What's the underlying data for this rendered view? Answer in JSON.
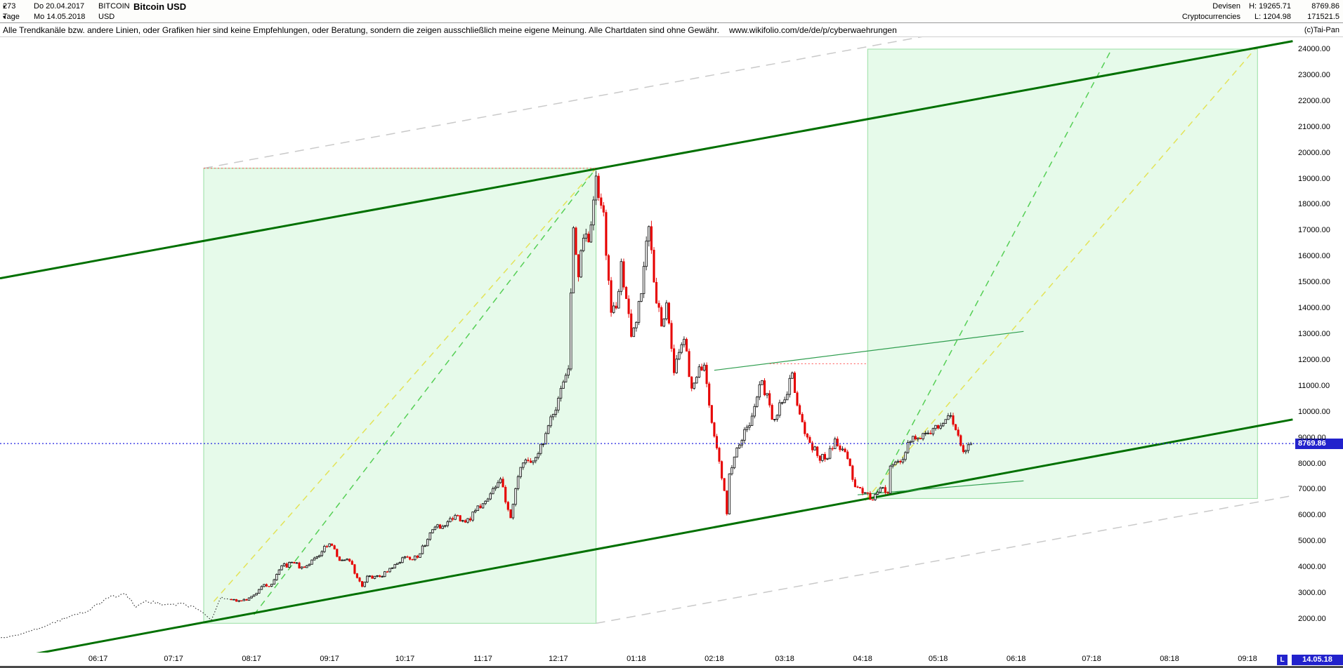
{
  "header": {
    "bars_count": "273",
    "range_start": "Do 20.04.2017",
    "period": "Tage",
    "range_end": "Mo 14.05.2018",
    "symbol": "BITCOIN",
    "symbol_currency": "USD",
    "title": "Bitcoin USD",
    "category_top": "Devisen",
    "category_bottom": "Cryptocurrencies",
    "high": "H: 19265.71",
    "low": "L: 1204.98",
    "last_price": "8769.86",
    "secondary_value": "171521.5"
  },
  "disclaimer": {
    "text": "Alle Trendkanäle bzw. andere Linien, oder Grafiken hier sind keine Empfehlungen, oder Beratung, sondern die zeigen ausschließlich meine eigene Meinung. Alle Chartdaten sind ohne Gewähr.",
    "url": "www.wikifolio.com/de/de/p/cyberwaehrungen",
    "copyright": "(c)Tai-Pan"
  },
  "icons": {
    "dropdown_caret": "▾"
  },
  "axis": {
    "y_ticks": [
      "24000.00",
      "23000.00",
      "22000.00",
      "21000.00",
      "20000.00",
      "19000.00",
      "18000.00",
      "17000.00",
      "16000.00",
      "15000.00",
      "14000.00",
      "13000.00",
      "12000.00",
      "11000.00",
      "10000.00",
      "9000.00",
      "8000.00",
      "7000.00",
      "6000.00",
      "5000.00",
      "4000.00",
      "3000.00",
      "2000.00"
    ],
    "x_ticks": [
      {
        "label": "06:17",
        "date": "2017-06-01"
      },
      {
        "label": "07:17",
        "date": "2017-07-01"
      },
      {
        "label": "08:17",
        "date": "2017-08-01"
      },
      {
        "label": "09:17",
        "date": "2017-09-01"
      },
      {
        "label": "10:17",
        "date": "2017-10-01"
      },
      {
        "label": "11:17",
        "date": "2017-11-01"
      },
      {
        "label": "12:17",
        "date": "2017-12-01"
      },
      {
        "label": "01:18",
        "date": "2018-01-01"
      },
      {
        "label": "02:18",
        "date": "2018-02-01"
      },
      {
        "label": "03:18",
        "date": "2018-03-01"
      },
      {
        "label": "04:18",
        "date": "2018-04-01"
      },
      {
        "label": "05:18",
        "date": "2018-05-01"
      },
      {
        "label": "06:18",
        "date": "2018-06-01"
      },
      {
        "label": "07:18",
        "date": "2018-07-01"
      },
      {
        "label": "08:18",
        "date": "2018-08-01"
      },
      {
        "label": "09:18",
        "date": "2018-09-01"
      }
    ],
    "last_marker": "L",
    "last_date": "14.05.18",
    "price_tag": "8769.86"
  },
  "colors": {
    "dark_green": "#007000",
    "light_green_fill": "#8fe6a0",
    "light_green_stroke": "#8fdc9a",
    "yellow": "#e3e357",
    "green_dashed": "#55cf55",
    "gray": "#c9c9c9",
    "thin_green": "#2f9e4f",
    "red": "#ff4d4d",
    "blue": "#2222e0",
    "candle_up_fill": "#ffffff",
    "candle_up_stroke": "#1a1a1a",
    "candle_down": "#e60000",
    "pre_line": "#2a2a2a",
    "price_tag_bg": "#2222cc"
  },
  "chart_data": {
    "type": "candlestick",
    "instrument": "Bitcoin USD",
    "interval": "Tage (daily)",
    "visible_high": 19265.71,
    "visible_low": 1204.98,
    "last": 8769.86,
    "x_axis": {
      "start": "2017-04-23",
      "end": "2018-09-20"
    },
    "y_axis": {
      "tick_min": 2000,
      "tick_max": 24000,
      "tick_step": 1000,
      "unit": "USD"
    },
    "candles_from": "2017-07-24",
    "close_anchors": [
      [
        "2017-04-20",
        1205
      ],
      [
        "2017-05-01",
        1400
      ],
      [
        "2017-05-12",
        1760
      ],
      [
        "2017-05-22",
        2150
      ],
      [
        "2017-05-27",
        2250
      ],
      [
        "2017-06-06",
        2880
      ],
      [
        "2017-06-12",
        2970
      ],
      [
        "2017-06-16",
        2450
      ],
      [
        "2017-06-20",
        2700
      ],
      [
        "2017-06-27",
        2550
      ],
      [
        "2017-07-05",
        2600
      ],
      [
        "2017-07-11",
        2350
      ],
      [
        "2017-07-16",
        1950
      ],
      [
        "2017-07-20",
        2850
      ],
      [
        "2017-07-24",
        2750
      ],
      [
        "2017-07-28",
        2700
      ],
      [
        "2017-08-01",
        2870
      ],
      [
        "2017-08-05",
        3250
      ],
      [
        "2017-08-09",
        3340
      ],
      [
        "2017-08-13",
        4050
      ],
      [
        "2017-08-18",
        4150
      ],
      [
        "2017-08-22",
        3980
      ],
      [
        "2017-08-26",
        4350
      ],
      [
        "2017-09-01",
        4900
      ],
      [
        "2017-09-05",
        4250
      ],
      [
        "2017-09-09",
        4230
      ],
      [
        "2017-09-14",
        3250
      ],
      [
        "2017-09-16",
        3650
      ],
      [
        "2017-09-21",
        3630
      ],
      [
        "2017-09-25",
        3950
      ],
      [
        "2017-10-01",
        4400
      ],
      [
        "2017-10-06",
        4370
      ],
      [
        "2017-10-12",
        5450
      ],
      [
        "2017-10-17",
        5600
      ],
      [
        "2017-10-21",
        6000
      ],
      [
        "2017-10-25",
        5730
      ],
      [
        "2017-11-01",
        6450
      ],
      [
        "2017-11-08",
        7400
      ],
      [
        "2017-11-12",
        5900
      ],
      [
        "2017-11-16",
        7850
      ],
      [
        "2017-11-21",
        8100
      ],
      [
        "2017-11-25",
        8750
      ],
      [
        "2017-11-29",
        9900
      ],
      [
        "2017-12-02",
        10900
      ],
      [
        "2017-12-05",
        11650
      ],
      [
        "2017-12-07",
        17100
      ],
      [
        "2017-12-09",
        15200
      ],
      [
        "2017-12-11",
        16700
      ],
      [
        "2017-12-13",
        16550
      ],
      [
        "2017-12-16",
        19100
      ],
      [
        "2017-12-19",
        17700
      ],
      [
        "2017-12-22",
        13830
      ],
      [
        "2017-12-24",
        14000
      ],
      [
        "2017-12-26",
        15800
      ],
      [
        "2017-12-30",
        12900
      ],
      [
        "2018-01-01",
        13450
      ],
      [
        "2018-01-06",
        17150
      ],
      [
        "2018-01-08",
        15000
      ],
      [
        "2018-01-11",
        13300
      ],
      [
        "2018-01-13",
        14200
      ],
      [
        "2018-01-16",
        11500
      ],
      [
        "2018-01-20",
        12800
      ],
      [
        "2018-01-23",
        10900
      ],
      [
        "2018-01-28",
        11800
      ],
      [
        "2018-02-01",
        9050
      ],
      [
        "2018-02-05",
        6950
      ],
      [
        "2018-02-06",
        6050
      ],
      [
        "2018-02-07",
        7600
      ],
      [
        "2018-02-10",
        8600
      ],
      [
        "2018-02-14",
        9400
      ],
      [
        "2018-02-17",
        10200
      ],
      [
        "2018-02-20",
        11200
      ],
      [
        "2018-02-24",
        9700
      ],
      [
        "2018-02-28",
        10350
      ],
      [
        "2018-03-04",
        11500
      ],
      [
        "2018-03-07",
        9900
      ],
      [
        "2018-03-11",
        8800
      ],
      [
        "2018-03-14",
        8300
      ],
      [
        "2018-03-18",
        8200
      ],
      [
        "2018-03-21",
        8950
      ],
      [
        "2018-03-25",
        8450
      ],
      [
        "2018-03-29",
        7100
      ],
      [
        "2018-04-01",
        6850
      ],
      [
        "2018-04-05",
        6600
      ],
      [
        "2018-04-08",
        7050
      ],
      [
        "2018-04-11",
        6850
      ],
      [
        "2018-04-12",
        7900
      ],
      [
        "2018-04-16",
        8050
      ],
      [
        "2018-04-20",
        8850
      ],
      [
        "2018-04-24",
        8950
      ],
      [
        "2018-04-29",
        9350
      ],
      [
        "2018-05-04",
        9700
      ],
      [
        "2018-05-06",
        9850
      ],
      [
        "2018-05-08",
        9300
      ],
      [
        "2018-05-11",
        8450
      ],
      [
        "2018-05-12",
        8500
      ],
      [
        "2018-05-14",
        8769.86
      ]
    ],
    "regions": [
      {
        "name": "trend-channel-2017",
        "from": "2017-07-13",
        "to": "2017-12-16",
        "top": 19400,
        "bottom": 1830,
        "fill": "light_green_fill",
        "stroke": "light_green_stroke",
        "opacity": 0.22
      },
      {
        "name": "trend-channel-2018",
        "from": "2018-04-03",
        "to": "2018-09-05",
        "top": 24000,
        "bottom": 6650,
        "fill": "light_green_fill",
        "stroke": "light_green_stroke",
        "opacity": 0.22
      }
    ],
    "trend_lines": [
      {
        "name": "gray-channel-upper",
        "from": [
          "2017-07-13",
          19400
        ],
        "to": [
          "2018-09-19",
          27100
        ],
        "color": "gray",
        "dash": "13,9",
        "width": 1.5
      },
      {
        "name": "gray-channel-lower",
        "from": [
          "2017-12-16",
          1830
        ],
        "to": [
          "2018-09-19",
          6760
        ],
        "color": "gray",
        "dash": "13,9",
        "width": 1.5
      },
      {
        "name": "yellow-fan-2017",
        "from": [
          "2017-07-17",
          2670
        ],
        "to": [
          "2017-12-16",
          19400
        ],
        "color": "yellow",
        "dash": "9,7",
        "width": 1.5
      },
      {
        "name": "yellow-fan-2018",
        "from": [
          "2018-04-02",
          6575
        ],
        "to": [
          "2018-09-04",
          24000
        ],
        "color": "yellow",
        "dash": "9,7",
        "width": 1.5
      },
      {
        "name": "green-fan-2017",
        "from": [
          "2017-08-02",
          2160
        ],
        "to": [
          "2017-12-16",
          19400
        ],
        "color": "green_dashed",
        "dash": "9,7",
        "width": 1.5
      },
      {
        "name": "green-fan-2018",
        "from": [
          "2018-04-06",
          6800
        ],
        "to": [
          "2018-07-09",
          24000
        ],
        "color": "green_dashed",
        "dash": "9,7",
        "width": 1.5
      },
      {
        "name": "main-channel-upper",
        "from": [
          "2017-04-23",
          15150
        ],
        "to": [
          "2018-09-19",
          24310
        ],
        "color": "dark_green",
        "width": 3
      },
      {
        "name": "main-channel-lower",
        "from": [
          "2017-04-23",
          400
        ],
        "to": [
          "2018-09-19",
          9700
        ],
        "color": "dark_green",
        "width": 3
      },
      {
        "name": "resistance-trendline",
        "from": [
          "2018-02-01",
          11600
        ],
        "to": [
          "2018-06-04",
          13100
        ],
        "color": "thin_green",
        "width": 1.2
      },
      {
        "name": "support-trendline",
        "from": [
          "2018-03-30",
          6790
        ],
        "to": [
          "2018-06-04",
          7330
        ],
        "color": "thin_green",
        "width": 1.2
      }
    ],
    "h_lines": [
      {
        "name": "resistance-level-19400",
        "price": 19400,
        "from": "2017-07-13",
        "to": "2017-12-16",
        "color": "red",
        "dash": "2,3",
        "width": 1
      },
      {
        "name": "resistance-level-11850",
        "price": 11850,
        "from": "2018-02-23",
        "to": "2018-04-03",
        "color": "red",
        "dash": "2,3",
        "width": 1
      },
      {
        "name": "last-price-line",
        "price": 8769.86,
        "from": "2017-04-23",
        "to": "2018-09-20",
        "color": "blue",
        "dash": "2,3",
        "width": 1.2
      }
    ]
  }
}
